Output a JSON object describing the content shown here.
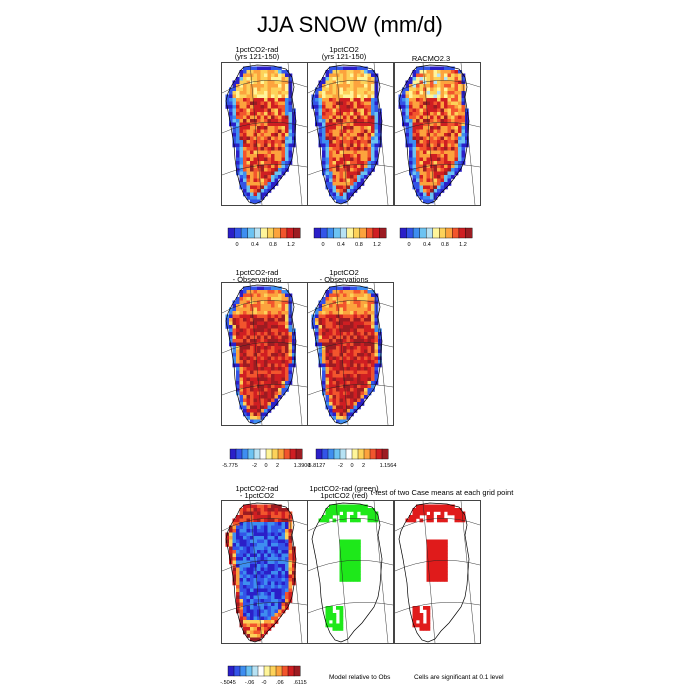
{
  "title": "JJA SNOW (mm/d)",
  "colors": {
    "snow_scale": [
      "#2b1fc8",
      "#3354e8",
      "#3e8ef0",
      "#6cc3f2",
      "#b7e2f4",
      "#fff59a",
      "#fdd25a",
      "#fca33d",
      "#f2552d",
      "#cf1e22",
      "#9c1c22"
    ],
    "diff_scale": [
      "#2b1fc8",
      "#3354e8",
      "#3e8ef0",
      "#6cc3f2",
      "#b7e2f4",
      "#ffffff",
      "#fff59a",
      "#fdd25a",
      "#fca33d",
      "#f2552d",
      "#cf1e22",
      "#9c1c22"
    ],
    "significance_green": "#1ee81a",
    "significance_red": "#e01b1b"
  },
  "chart_data": [
    {
      "type": "heatmap",
      "panel": "1pctCO2-rad",
      "title_lines": [
        "1pctCO2-rad",
        "(yrs 121-150)"
      ],
      "map_style": "field",
      "colorbar": {
        "ticks": [
          "0",
          "0.4",
          "0.8",
          "1.2"
        ],
        "tick_positions": [
          0,
          0.4,
          0.8,
          1.2
        ],
        "range": [
          -0.2,
          1.4
        ],
        "palette": "snow_scale"
      }
    },
    {
      "type": "heatmap",
      "panel": "1pctCO2",
      "title_lines": [
        "1pctCO2",
        "(yrs 121-150)"
      ],
      "map_style": "field",
      "colorbar": {
        "ticks": [
          "0",
          "0.4",
          "0.8",
          "1.2"
        ],
        "tick_positions": [
          0,
          0.4,
          0.8,
          1.2
        ],
        "range": [
          -0.2,
          1.4
        ],
        "palette": "snow_scale"
      }
    },
    {
      "type": "heatmap",
      "panel": "RACMO2.3",
      "title_lines": [
        "RACMO2.3"
      ],
      "map_style": "field-racmo",
      "colorbar": {
        "ticks": [
          "0",
          "0.4",
          "0.8",
          "1.2"
        ],
        "tick_positions": [
          0,
          0.4,
          0.8,
          1.2
        ],
        "range": [
          -0.2,
          1.4
        ],
        "palette": "snow_scale"
      }
    },
    {
      "type": "heatmap",
      "panel": "1pctCO2-rad - Observations",
      "title_lines": [
        "1pctCO2-rad",
        "- Observations"
      ],
      "map_style": "bias",
      "colorbar": {
        "ticks": [
          "-5.775",
          "-2",
          "0",
          "2",
          "1.3909"
        ],
        "tick_positions": [
          0,
          0.34,
          0.5,
          0.66,
          1
        ],
        "palette": "diff_scale"
      }
    },
    {
      "type": "heatmap",
      "panel": "1pctCO2 - Observations",
      "title_lines": [
        "1pctCO2",
        "- Observations"
      ],
      "map_style": "bias",
      "colorbar": {
        "ticks": [
          "-5.8127",
          "-2",
          "0",
          "2",
          "1.1564"
        ],
        "tick_positions": [
          0,
          0.34,
          0.5,
          0.66,
          1
        ],
        "palette": "diff_scale"
      }
    },
    {
      "type": "heatmap",
      "panel": "1pctCO2-rad - 1pctCO2",
      "title_lines": [
        "1pctCO2-rad",
        "- 1pctCO2"
      ],
      "map_style": "diff",
      "colorbar": {
        "ticks": [
          "-.5045",
          "-.06",
          "-0",
          ".06",
          ".6115"
        ],
        "tick_positions": [
          0,
          0.3,
          0.5,
          0.72,
          1
        ],
        "palette": "diff_scale"
      }
    },
    {
      "type": "heatmap",
      "panel": "Model relative to Obs",
      "title_lines": [
        "1pctCO2-rad (green)",
        "1pctCO2 (red)"
      ],
      "map_style": "sig-model",
      "note": "Model relative to Obs"
    },
    {
      "type": "heatmap",
      "panel": "t-test of two Case means",
      "title_lines": [
        "t-test of two Case means at each grid point"
      ],
      "map_style": "sig-cases",
      "note": "Cells are significant at 0.1 level"
    }
  ]
}
